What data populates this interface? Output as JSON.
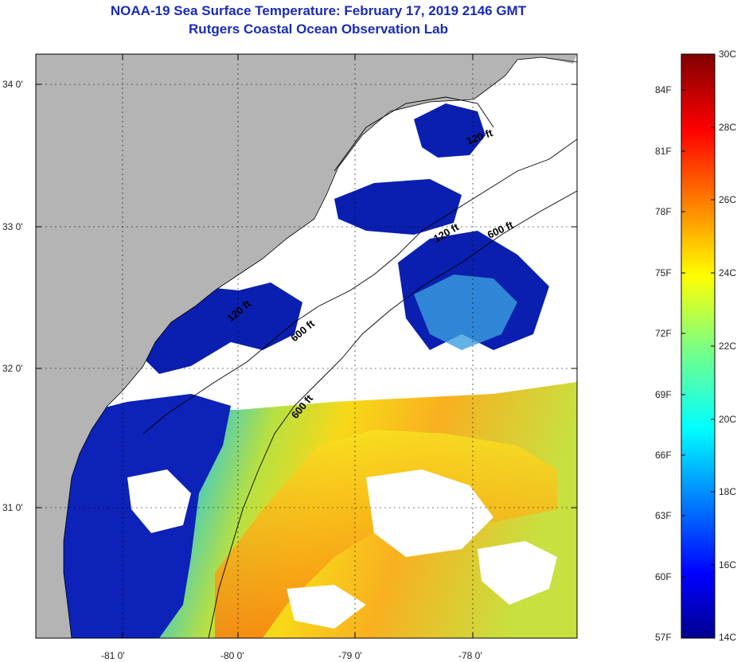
{
  "header": {
    "title_line1": "NOAA-19 Sea Surface Temperature:  February 17, 2019 2146 GMT",
    "title_line2": "Rutgers Coastal Ocean Observation Lab"
  },
  "map": {
    "lat_labels": [
      "34 0'",
      "33 0'",
      "32 0'",
      "31 0'"
    ],
    "lon_labels": [
      "-81 0'",
      "-80 0'",
      "-79 0'",
      "-78 0'"
    ],
    "isobath_labels": [
      "120 ft",
      "120 ft",
      "600 ft",
      "600 ft",
      "120 ft",
      "600 ft"
    ],
    "colors": {
      "land": "#b4b4b4",
      "cloud": "#ffffff",
      "cold": "#0a1fb0"
    }
  },
  "colorbar": {
    "celsius_labels": [
      "30C",
      "28C",
      "26C",
      "24C",
      "22C",
      "20C",
      "18C",
      "16C",
      "14C"
    ],
    "fahrenheit_labels": [
      "84F",
      "81F",
      "78F",
      "75F",
      "72F",
      "69F",
      "66F",
      "63F",
      "60F",
      "57F"
    ]
  }
}
